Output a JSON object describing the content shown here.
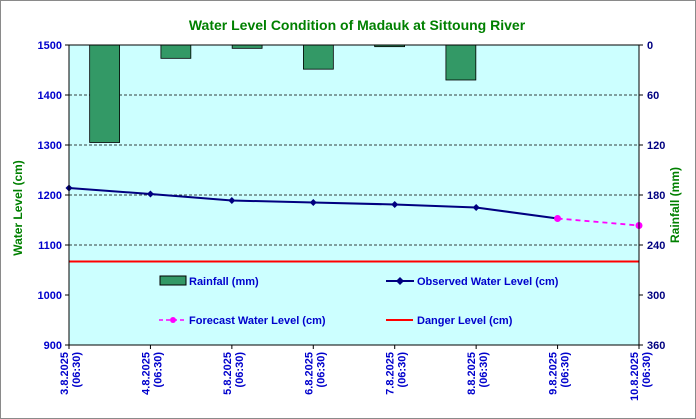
{
  "chart_data": {
    "type": "bar+line",
    "title": "Water Level Condition of Madauk at Sittoung River",
    "categories": [
      [
        "3.8.2025",
        "(06:30)"
      ],
      [
        "4.8.2025",
        "(06:30)"
      ],
      [
        "5.8.2025",
        "(06:30)"
      ],
      [
        "6.8.2025",
        "(06:30)"
      ],
      [
        "7.8.2025",
        "(06:30)"
      ],
      [
        "8.8.2025",
        "(06:30)"
      ],
      [
        "9.8.2025",
        "(06:30)"
      ],
      [
        "10.8.2025",
        "(06:30)"
      ]
    ],
    "left_axis": {
      "label": "Water Level (cm)",
      "min": 900,
      "max": 1500,
      "step": 100
    },
    "right_axis": {
      "label": "Rainfall (mm)",
      "min": 0,
      "max": 360,
      "step": 60,
      "reversed": true
    },
    "gridlines": [
      1100,
      1200,
      1300,
      1400
    ],
    "series": [
      {
        "name": "Rainfall (mm)",
        "kind": "bar",
        "axis": "right",
        "color": "#339966",
        "values": [
          117,
          16,
          4,
          29,
          2,
          42,
          null,
          null
        ]
      },
      {
        "name": "Observed Water Level (cm)",
        "kind": "line",
        "axis": "left",
        "color": "#000080",
        "values": [
          1214,
          1202,
          1189,
          1185,
          1181,
          1175,
          1153,
          null
        ]
      },
      {
        "name": "Forecast Water Level (cm)",
        "kind": "dashed-line",
        "axis": "left",
        "color": "#ff00ff",
        "values": [
          null,
          null,
          null,
          null,
          null,
          null,
          1153,
          1139
        ]
      },
      {
        "name": "Danger Level (cm)",
        "kind": "hline",
        "axis": "left",
        "color": "#ff0000",
        "value": 1067
      }
    ],
    "colors": {
      "plot_bg": "#ccffff",
      "title": "#008000",
      "left_ticks": "#0000cc",
      "right_ticks": "#000080",
      "axis_titles": "#008000"
    }
  }
}
